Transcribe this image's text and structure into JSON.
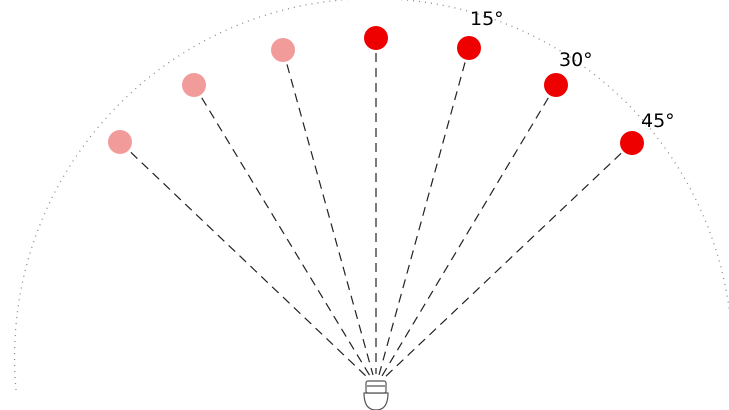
{
  "labels": [
    "15°",
    "30°",
    "45°"
  ]
}
